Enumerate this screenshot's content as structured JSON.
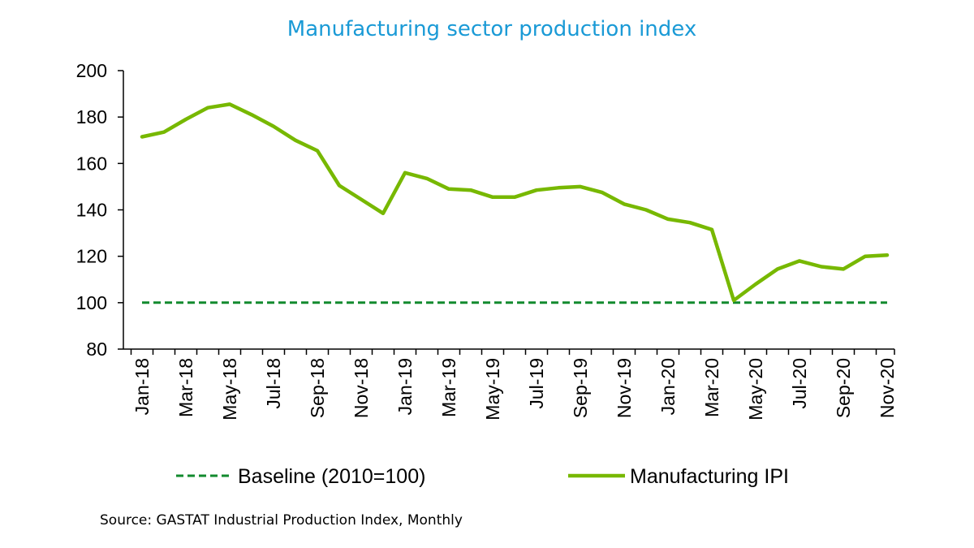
{
  "chart_data": {
    "type": "line",
    "title": "Manufacturing sector production index",
    "xlabel": "",
    "ylabel": "",
    "ylim": [
      80,
      200
    ],
    "y_ticks": [
      80,
      100,
      120,
      140,
      160,
      180,
      200
    ],
    "categories": [
      "Jan-18",
      "Feb-18",
      "Mar-18",
      "Apr-18",
      "May-18",
      "Jun-18",
      "Jul-18",
      "Aug-18",
      "Sep-18",
      "Oct-18",
      "Nov-18",
      "Dec-18",
      "Jan-19",
      "Feb-19",
      "Mar-19",
      "Apr-19",
      "May-19",
      "Jun-19",
      "Jul-19",
      "Aug-19",
      "Sep-19",
      "Oct-19",
      "Nov-19",
      "Dec-19",
      "Jan-20",
      "Feb-20",
      "Mar-20",
      "Apr-20",
      "May-20",
      "Jun-20",
      "Jul-20",
      "Aug-20",
      "Sep-20",
      "Oct-20",
      "Nov-20"
    ],
    "x_tick_labels": [
      "Jan-18",
      "Mar-18",
      "May-18",
      "Jul-18",
      "Sep-18",
      "Nov-18",
      "Jan-19",
      "Mar-19",
      "May-19",
      "Jul-19",
      "Sep-19",
      "Nov-19",
      "Jan-20",
      "Mar-20",
      "May-20",
      "Jul-20",
      "Sep-20",
      "Nov-20"
    ],
    "series": [
      {
        "name": "Manufacturing IPI",
        "color": "#77b800",
        "style": "solid",
        "values": [
          171.5,
          173.5,
          179,
          184,
          185.5,
          181,
          176,
          170,
          165.5,
          150.5,
          144.5,
          138.5,
          156,
          153.5,
          149,
          148.5,
          145.5,
          145.5,
          148.5,
          149.5,
          150,
          147.5,
          142.5,
          140,
          136,
          134.5,
          131.5,
          101,
          108,
          114.5,
          118,
          115.5,
          114.5,
          120,
          120.5
        ]
      },
      {
        "name": "Baseline (2010=100)",
        "color": "#128a2e",
        "style": "dashed",
        "values": [
          100,
          100,
          100,
          100,
          100,
          100,
          100,
          100,
          100,
          100,
          100,
          100,
          100,
          100,
          100,
          100,
          100,
          100,
          100,
          100,
          100,
          100,
          100,
          100,
          100,
          100,
          100,
          100,
          100,
          100,
          100,
          100,
          100,
          100,
          100
        ]
      }
    ],
    "legend_position": "bottom",
    "grid": false
  },
  "title_color": "#1a9ad6",
  "source_text": "Source: GASTAT Industrial Production Index, Monthly"
}
